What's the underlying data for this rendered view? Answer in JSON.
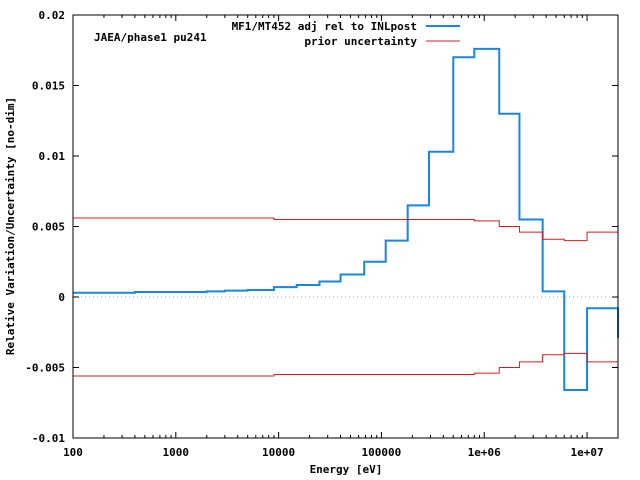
{
  "chart_data": {
    "type": "line",
    "title": "",
    "annotation": "JAEA/phase1 pu241",
    "xlabel": "Energy [eV]",
    "ylabel": "Relative Variation/Uncertainty [no-dim]",
    "xscale": "log",
    "xlim": [
      100,
      20000000
    ],
    "ylim": [
      -0.01,
      0.02
    ],
    "x_ticks": [
      100,
      1000,
      10000,
      100000,
      1000000,
      10000000
    ],
    "x_tick_labels": [
      "100",
      "1000",
      "10000",
      "100000",
      "1e+06",
      "1e+07"
    ],
    "y_ticks": [
      -0.01,
      -0.005,
      0,
      0.005,
      0.01,
      0.015,
      0.02
    ],
    "y_tick_labels": [
      "-0.01",
      "-0.005",
      "0",
      "0.005",
      "0.01",
      "0.015",
      "0.02"
    ],
    "zero_line": true,
    "legend_position": "top-right",
    "series": [
      {
        "name": "MF1/MT452 adj rel to INLpost",
        "color": "#1a86e0",
        "style": "step",
        "x": [
          100,
          400,
          2000,
          3000,
          5000,
          9000,
          15000,
          25000,
          40000,
          68000,
          110000,
          180000,
          290000,
          500000,
          800000,
          1400000,
          2200000,
          3700000,
          6000000,
          10000000,
          20000000
        ],
        "y": [
          0.0003,
          0.00035,
          0.0004,
          0.00045,
          0.0005,
          0.0007,
          0.00085,
          0.0011,
          0.0016,
          0.0025,
          0.004,
          0.0065,
          0.0103,
          0.017,
          0.0176,
          0.013,
          0.0055,
          0.0004,
          -0.0066,
          -0.0008,
          -0.0029
        ]
      },
      {
        "name": "prior uncertainty",
        "color": "#cc2020",
        "style": "step",
        "mirrored": true,
        "x": [
          100,
          9000,
          68000,
          800000,
          1400000,
          2200000,
          3700000,
          6000000,
          10000000,
          20000000
        ],
        "y": [
          0.0056,
          0.0055,
          0.0055,
          0.0054,
          0.005,
          0.0046,
          0.0041,
          0.004,
          0.0046,
          0.0076
        ]
      }
    ]
  }
}
